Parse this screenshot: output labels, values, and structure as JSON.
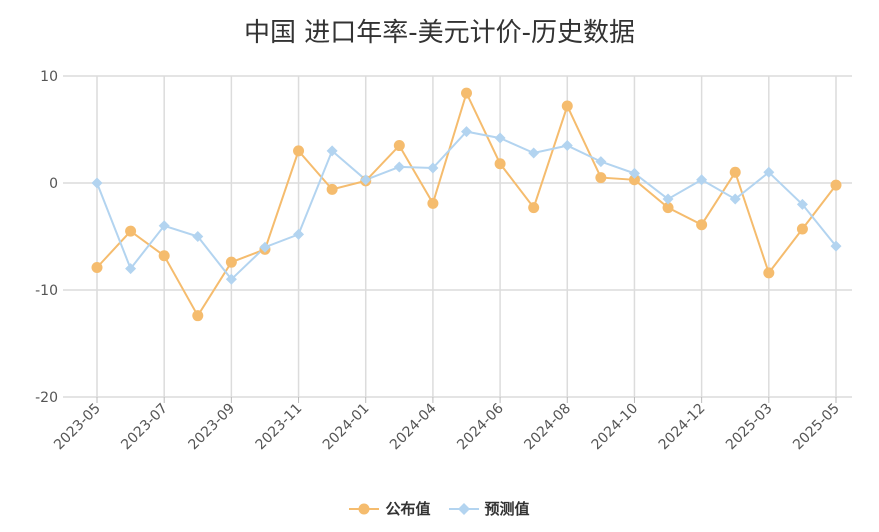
{
  "chart_data": {
    "type": "line",
    "title": "中国 进口年率-美元计价-历史数据",
    "xlabel": "",
    "ylabel": "",
    "ylim": [
      -20,
      10
    ],
    "yticks": [
      10,
      0,
      -10,
      -20
    ],
    "grid": true,
    "legend_position": "bottom",
    "x": [
      "2023-05",
      "2023-06",
      "2023-07",
      "2023-08",
      "2023-09",
      "2023-10",
      "2023-11",
      "2023-12",
      "2024-01",
      "2024-03",
      "2024-04",
      "2024-05",
      "2024-06",
      "2024-07",
      "2024-08",
      "2024-09",
      "2024-10",
      "2024-11",
      "2024-12",
      "2025-01",
      "2025-03",
      "2025-04",
      "2025-05"
    ],
    "xtick_labels": [
      "2023-05",
      "2023-07",
      "2023-09",
      "2023-11",
      "2024-01",
      "2024-04",
      "2024-06",
      "2024-08",
      "2024-10",
      "2024-12",
      "2025-03",
      "2025-05"
    ],
    "series": [
      {
        "name": "公布值",
        "color": "#F5BC6E",
        "marker": "circle",
        "values": [
          -7.9,
          -4.5,
          -6.8,
          -12.4,
          -7.4,
          -6.2,
          3.0,
          -0.6,
          0.2,
          3.5,
          -1.9,
          8.4,
          1.8,
          -2.3,
          7.2,
          0.5,
          0.3,
          -2.3,
          -3.9,
          1.0,
          -8.4,
          -4.3,
          -0.2
        ]
      },
      {
        "name": "预测值",
        "color": "#B3D4F0",
        "marker": "diamond",
        "values": [
          0.0,
          -8.0,
          -4.0,
          -5.0,
          -9.0,
          -6.0,
          -4.8,
          3.0,
          0.3,
          1.5,
          1.4,
          4.8,
          4.2,
          2.8,
          3.5,
          2.0,
          0.9,
          -1.5,
          0.3,
          -1.5,
          1.0,
          -2.0,
          -5.9
        ]
      }
    ]
  }
}
